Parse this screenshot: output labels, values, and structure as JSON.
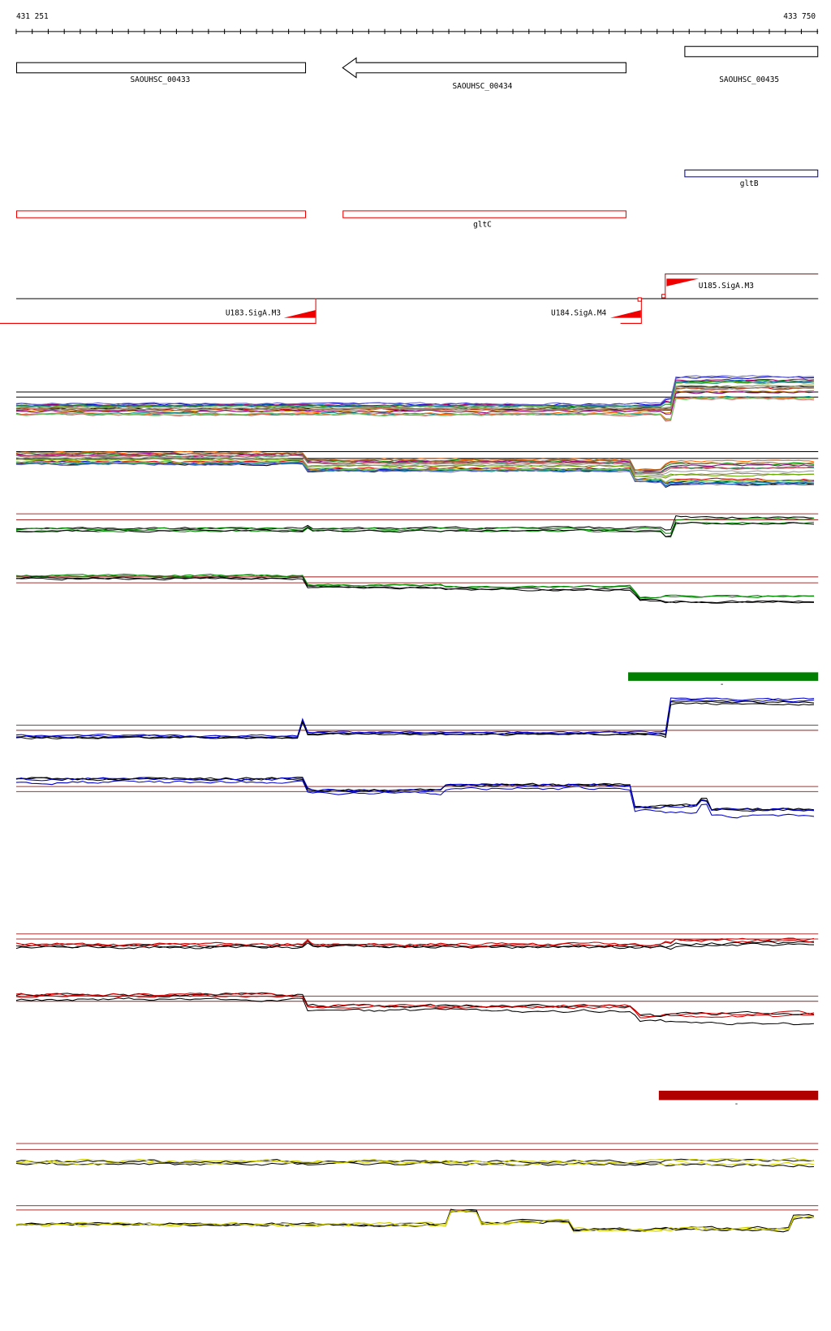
{
  "ruler": {
    "start": "431 251",
    "end": "433 750"
  },
  "genes": [
    {
      "label": "SAOUHSC_00433"
    },
    {
      "label": "SAOUHSC_00434"
    },
    {
      "label": "SAOUHSC_00435"
    }
  ],
  "operons": [
    {
      "label": "gltB"
    },
    {
      "label": "gltC"
    }
  ],
  "promoters": [
    {
      "label": "U183.SigA.M3"
    },
    {
      "label": "U184.SigA.M4"
    },
    {
      "label": "U185.SigA.M3"
    }
  ],
  "bars": [
    {
      "label": "-"
    },
    {
      "label": "-"
    }
  ]
}
